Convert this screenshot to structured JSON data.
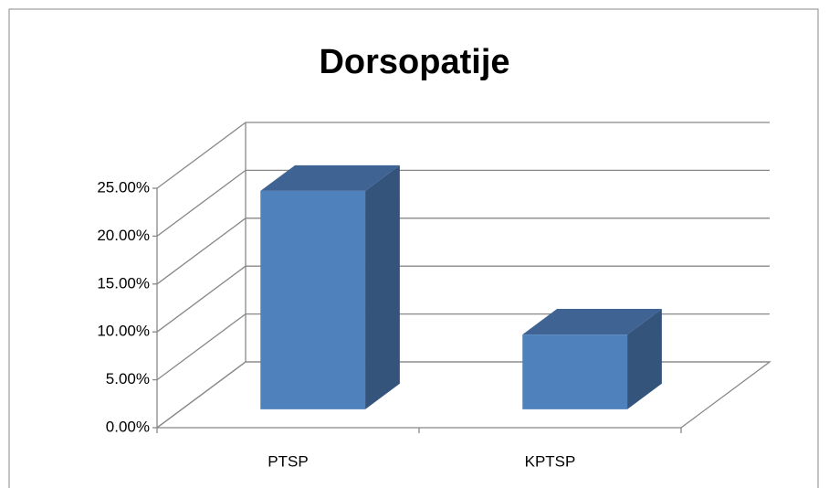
{
  "chart_data": {
    "type": "bar3d",
    "title": "Dorsopatije",
    "categories": [
      "PTSP",
      "KPTSP"
    ],
    "values": [
      22.8,
      7.8
    ],
    "color": "#4f81bd",
    "ylim": [
      0,
      25
    ],
    "yticks": [
      {
        "value": 0,
        "label": "0.00%"
      },
      {
        "value": 5,
        "label": "5.00%"
      },
      {
        "value": 10,
        "label": "10.00%"
      },
      {
        "value": 15,
        "label": "15.00%"
      },
      {
        "value": 20,
        "label": "20.00%"
      },
      {
        "value": 25,
        "label": "25.00%"
      }
    ],
    "grid": true
  }
}
